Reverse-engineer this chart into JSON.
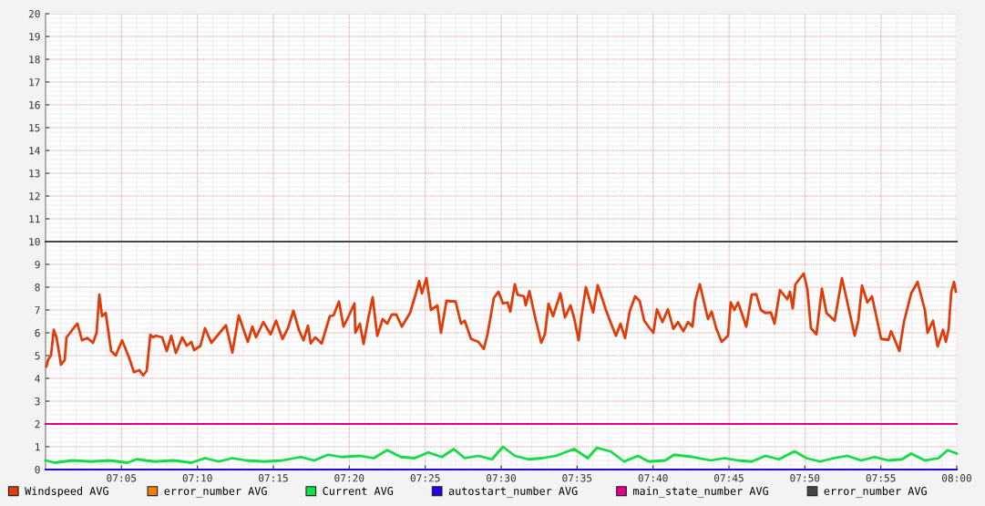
{
  "chart_data": {
    "type": "line",
    "xlim": [
      7,
      8
    ],
    "xticks": [
      {
        "value": 7.0833,
        "label": "07:05"
      },
      {
        "value": 7.1667,
        "label": "07:10"
      },
      {
        "value": 7.25,
        "label": "07:15"
      },
      {
        "value": 7.3333,
        "label": "07:20"
      },
      {
        "value": 7.4167,
        "label": "07:25"
      },
      {
        "value": 7.5,
        "label": "07:30"
      },
      {
        "value": 7.5833,
        "label": "07:35"
      },
      {
        "value": 7.6667,
        "label": "07:40"
      },
      {
        "value": 7.75,
        "label": "07:45"
      },
      {
        "value": 7.8333,
        "label": "07:50"
      },
      {
        "value": 7.9167,
        "label": "07:55"
      },
      {
        "value": 8,
        "label": "08:00"
      }
    ],
    "ylim": [
      0,
      20
    ],
    "yticks": [
      0,
      1,
      2,
      3,
      4,
      5,
      6,
      7,
      8,
      9,
      10,
      11,
      12,
      13,
      14,
      15,
      16,
      17,
      18,
      19,
      20
    ],
    "grid": true,
    "legend": "bottom",
    "series": [
      {
        "name": "Windspeed AVG",
        "color": "#e03c0a",
        "x": [
          7.001,
          7.003,
          7.006,
          7.009,
          7.012,
          7.017,
          7.021,
          7.023,
          7.027,
          7.032,
          7.035,
          7.04,
          7.046,
          7.052,
          7.056,
          7.059,
          7.062,
          7.066,
          7.072,
          7.077,
          7.084,
          7.092,
          7.097,
          7.103,
          7.107,
          7.111,
          7.115,
          7.118,
          7.121,
          7.128,
          7.133,
          7.138,
          7.143,
          7.15,
          7.155,
          7.16,
          7.163,
          7.17,
          7.175,
          7.182,
          7.198,
          7.205,
          7.212,
          7.222,
          7.227,
          7.231,
          7.239,
          7.247,
          7.253,
          7.26,
          7.266,
          7.272,
          7.278,
          7.283,
          7.288,
          7.291,
          7.296,
          7.303,
          7.312,
          7.316,
          7.322,
          7.327,
          7.333,
          7.339,
          7.34,
          7.345,
          7.349,
          7.354,
          7.359,
          7.364,
          7.37,
          7.375,
          7.38,
          7.385,
          7.391,
          7.4,
          7.407,
          7.41,
          7.413,
          7.418,
          7.423,
          7.43,
          7.434,
          7.44,
          7.45,
          7.456,
          7.46,
          7.467,
          7.475,
          7.481,
          7.485,
          7.492,
          7.497,
          7.502,
          7.507,
          7.51,
          7.515,
          7.518,
          7.525,
          7.527,
          7.531,
          7.537,
          7.544,
          7.548,
          7.552,
          7.557,
          7.565,
          7.57,
          7.576,
          7.58,
          7.585,
          7.588,
          7.593,
          7.601,
          7.606,
          7.615,
          7.62,
          7.626,
          7.631,
          7.636,
          7.641,
          7.647,
          7.652,
          7.657,
          7.663,
          7.667,
          7.671,
          7.677,
          7.683,
          7.689,
          7.694,
          7.7,
          7.705,
          7.71,
          7.713,
          7.718,
          7.727,
          7.731,
          7.736,
          7.742,
          7.749,
          7.752,
          7.756,
          7.76,
          7.769,
          7.775,
          7.78,
          7.785,
          7.79,
          7.796,
          7.8,
          7.806,
          7.814,
          7.817,
          7.82,
          7.823,
          7.832,
          7.836,
          7.84,
          7.846,
          7.852,
          7.857,
          7.866,
          7.874,
          7.88,
          7.888,
          7.892,
          7.896,
          7.902,
          7.907,
          7.917,
          7.925,
          7.928,
          7.937,
          7.942,
          7.95,
          7.957,
          7.965,
          7.968,
          7.974,
          7.979,
          7.985,
          7.988,
          7.991,
          7.994,
          7.997,
          7.999
        ],
        "values": [
          4.53,
          4.84,
          5.0,
          6.13,
          5.8,
          4.6,
          4.8,
          5.8,
          6.0,
          6.27,
          6.4,
          5.67,
          5.77,
          5.56,
          6.0,
          7.67,
          6.73,
          6.87,
          5.2,
          5.0,
          5.67,
          4.87,
          4.27,
          4.36,
          4.13,
          4.33,
          5.91,
          5.8,
          5.87,
          5.8,
          5.2,
          5.87,
          5.11,
          5.8,
          5.43,
          5.6,
          5.24,
          5.43,
          6.2,
          5.56,
          6.33,
          5.13,
          6.76,
          5.6,
          6.27,
          5.8,
          6.47,
          5.93,
          6.53,
          5.73,
          6.2,
          6.97,
          6.13,
          5.67,
          6.31,
          5.53,
          5.8,
          5.53,
          6.73,
          6.76,
          7.37,
          6.27,
          6.76,
          7.29,
          6.0,
          6.4,
          5.51,
          6.6,
          7.56,
          5.87,
          6.6,
          6.4,
          6.8,
          6.8,
          6.27,
          6.87,
          7.8,
          8.27,
          7.73,
          8.4,
          7.0,
          7.2,
          6.0,
          7.4,
          7.37,
          6.4,
          6.53,
          5.73,
          5.6,
          5.29,
          5.93,
          7.53,
          7.8,
          7.29,
          7.33,
          6.93,
          8.13,
          7.67,
          7.6,
          7.2,
          7.83,
          6.73,
          5.56,
          5.93,
          7.27,
          6.73,
          7.73,
          6.67,
          7.2,
          6.67,
          5.67,
          6.67,
          8.0,
          6.89,
          8.09,
          7.0,
          6.47,
          5.87,
          6.4,
          5.77,
          6.93,
          7.6,
          7.4,
          6.53,
          6.2,
          6.0,
          7.03,
          6.47,
          7.03,
          6.17,
          6.47,
          6.07,
          6.47,
          6.27,
          7.4,
          8.13,
          6.6,
          6.93,
          6.2,
          5.6,
          5.87,
          7.33,
          7.0,
          7.33,
          6.27,
          7.67,
          7.69,
          7.0,
          6.87,
          6.89,
          6.4,
          7.87,
          7.47,
          7.8,
          7.07,
          8.13,
          8.6,
          7.93,
          6.2,
          5.93,
          7.93,
          6.87,
          6.53,
          8.4,
          7.33,
          5.87,
          6.53,
          8.07,
          7.33,
          7.6,
          5.73,
          5.69,
          6.07,
          5.2,
          6.47,
          7.73,
          8.23,
          7.0,
          6.0,
          6.53,
          5.4,
          6.13,
          5.6,
          6.13,
          7.8,
          8.23,
          7.8
        ]
      },
      {
        "name": "error_number AVG",
        "color": "#ee7f00",
        "values": [
          null
        ]
      },
      {
        "name": "Current AVG",
        "color": "#11dd44",
        "x": [
          7.0,
          7.01,
          7.03,
          7.05,
          7.07,
          7.09,
          7.1,
          7.12,
          7.14,
          7.16,
          7.175,
          7.19,
          7.205,
          7.22,
          7.24,
          7.26,
          7.28,
          7.295,
          7.31,
          7.325,
          7.345,
          7.36,
          7.375,
          7.39,
          7.405,
          7.42,
          7.435,
          7.448,
          7.46,
          7.475,
          7.49,
          7.502,
          7.515,
          7.53,
          7.545,
          7.56,
          7.58,
          7.595,
          7.605,
          7.62,
          7.635,
          7.65,
          7.662,
          7.68,
          7.69,
          7.71,
          7.73,
          7.745,
          7.76,
          7.775,
          7.79,
          7.805,
          7.822,
          7.835,
          7.85,
          7.865,
          7.88,
          7.895,
          7.91,
          7.925,
          7.94,
          7.95,
          7.965,
          7.98,
          7.99,
          8.0
        ],
        "values": [
          0.4,
          0.3,
          0.4,
          0.35,
          0.4,
          0.3,
          0.45,
          0.35,
          0.4,
          0.3,
          0.5,
          0.35,
          0.5,
          0.4,
          0.35,
          0.4,
          0.55,
          0.4,
          0.65,
          0.55,
          0.6,
          0.5,
          0.85,
          0.55,
          0.5,
          0.75,
          0.55,
          0.9,
          0.5,
          0.6,
          0.45,
          1.0,
          0.6,
          0.45,
          0.5,
          0.6,
          0.9,
          0.5,
          0.95,
          0.8,
          0.35,
          0.6,
          0.35,
          0.4,
          0.65,
          0.55,
          0.4,
          0.5,
          0.4,
          0.35,
          0.6,
          0.45,
          0.8,
          0.5,
          0.35,
          0.5,
          0.6,
          0.4,
          0.55,
          0.4,
          0.45,
          0.7,
          0.4,
          0.5,
          0.85,
          0.7
        ]
      },
      {
        "name": "autostart_number AVG",
        "color": "#2200ee",
        "x": [
          7,
          8
        ],
        "values": [
          0,
          0
        ]
      },
      {
        "name": "main_state_number AVG",
        "color": "#e0008a",
        "x": [
          7,
          8
        ],
        "values": [
          2,
          2
        ]
      },
      {
        "name": "error_number AVG",
        "color": "#444444",
        "x": [
          7,
          8
        ],
        "values": [
          10,
          10
        ]
      }
    ]
  }
}
